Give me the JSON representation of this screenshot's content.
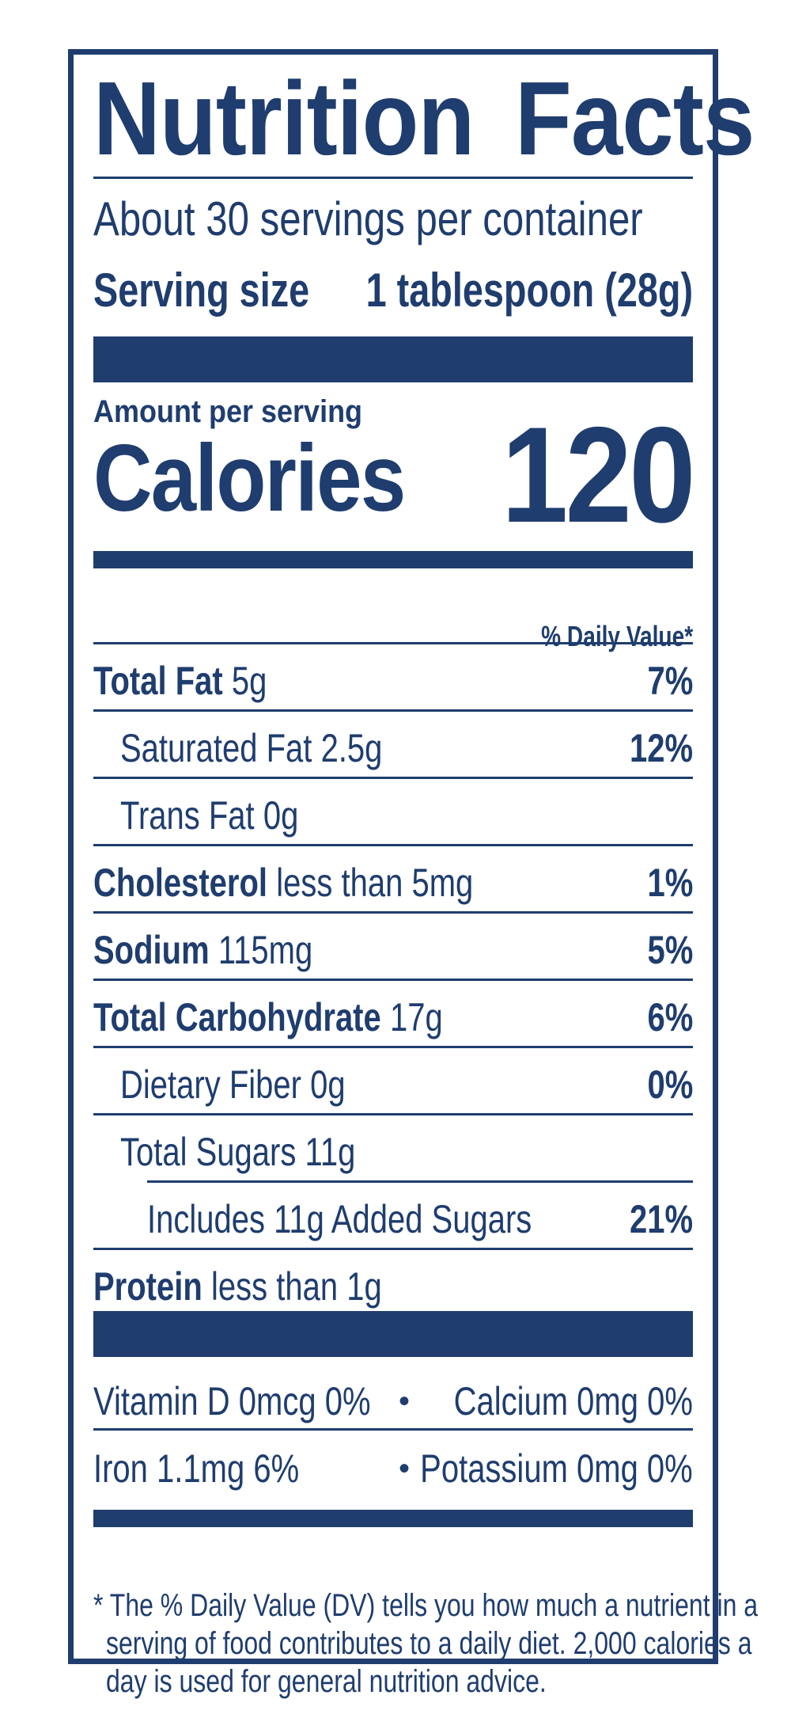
{
  "title_word1": "Nutrition",
  "title_word2": "Facts",
  "servings_per_container": "About 30 servings per container",
  "serving_size_label": "Serving size",
  "serving_size_value": "1 tablespoon (28g)",
  "amount_per_serving": "Amount per serving",
  "calories_label": "Calories",
  "calories_value": "120",
  "daily_value_header": "% Daily Value*",
  "nutrients": [
    {
      "name": "Total Fat",
      "amount": "5g",
      "dv": "7%"
    },
    {
      "name": "Saturated Fat",
      "amount": "2.5g",
      "dv": "12%"
    },
    {
      "name": "Trans Fat",
      "amount": "0g",
      "dv": ""
    },
    {
      "name": "Cholesterol",
      "amount": "less than 5mg",
      "dv": "1%"
    },
    {
      "name": "Sodium",
      "amount": "115mg",
      "dv": "5%"
    },
    {
      "name": "Total Carbohydrate",
      "amount": "17g",
      "dv": "6%"
    },
    {
      "name": "Dietary Fiber",
      "amount": "0g",
      "dv": "0%"
    },
    {
      "name": "Total Sugars",
      "amount": "11g",
      "dv": ""
    },
    {
      "name": "Includes 11g Added Sugars",
      "amount": "",
      "dv": "21%"
    },
    {
      "name": "Protein",
      "amount": "less than 1g",
      "dv": ""
    }
  ],
  "vitamins": [
    {
      "left": "Vitamin D  0mcg  0%",
      "right": "Calcium  0mg  0%"
    },
    {
      "left": "Iron  1.1mg  6%",
      "right": "Potassium  0mg  0%"
    }
  ],
  "bullet": "•",
  "footnote_lines": [
    "* The % Daily Value (DV) tells you how much a nutrient in a",
    "serving of food contributes to a daily diet. 2,000 calories a",
    "day is used for general nutrition advice."
  ],
  "colors": {
    "ink": "#1f3d6e",
    "background": "#ffffff"
  }
}
